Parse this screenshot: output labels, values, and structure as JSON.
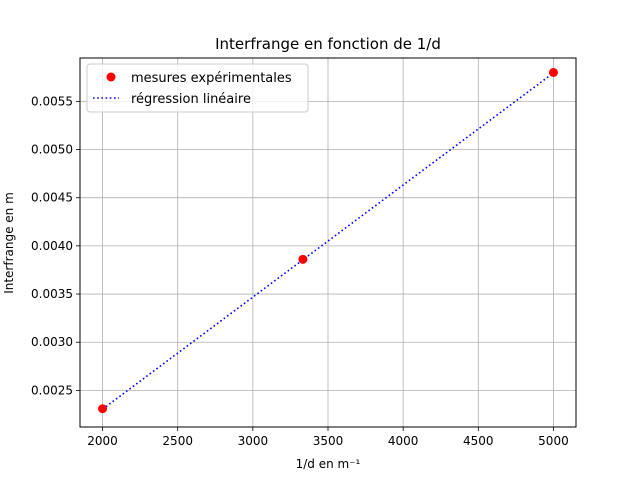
{
  "chart_data": {
    "type": "scatter",
    "title": "Interfrange en fonction de 1/d",
    "xlabel": "1/d en m⁻¹",
    "ylabel": "Interfrange en m",
    "xlim": [
      1850,
      5150
    ],
    "ylim": [
      0.00212,
      0.00595
    ],
    "grid": true,
    "legend_position": "top-left",
    "x_ticks": [
      2000,
      2500,
      3000,
      3500,
      4000,
      4500,
      5000
    ],
    "x_tick_labels": [
      "2000",
      "2500",
      "3000",
      "3500",
      "4000",
      "4500",
      "5000"
    ],
    "y_ticks": [
      0.0025,
      0.003,
      0.0035,
      0.004,
      0.0045,
      0.005,
      0.0055
    ],
    "y_tick_labels": [
      "0.0025",
      "0.0030",
      "0.0035",
      "0.0040",
      "0.0045",
      "0.0050",
      "0.0055"
    ],
    "series": [
      {
        "name": "mesures expérimentales",
        "kind": "points",
        "color": "#ff0000",
        "x": [
          2000,
          3333,
          5000
        ],
        "y": [
          0.00231,
          0.00386,
          0.0058
        ]
      },
      {
        "name": "régression linéaire",
        "kind": "dotted-line",
        "color": "#0000ff",
        "x": [
          2000,
          5000
        ],
        "y": [
          0.002305,
          0.005795
        ]
      }
    ]
  }
}
